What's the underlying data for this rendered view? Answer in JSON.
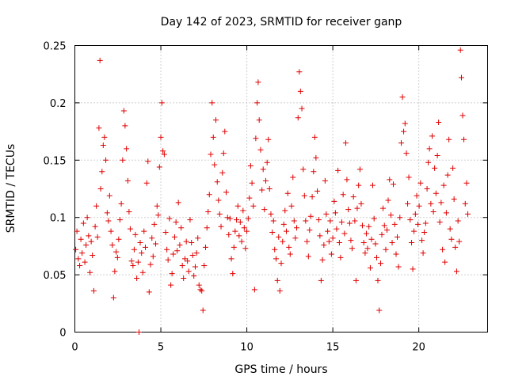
{
  "chart_data": {
    "type": "scatter",
    "title": "Day 142 of 2023, SRMTID for receiver ganp",
    "xlabel": "GPS time / hours",
    "ylabel": "SRMTID / TECUs",
    "xlim": [
      0,
      24
    ],
    "ylim": [
      0,
      0.25
    ],
    "xticks": [
      0,
      5,
      10,
      15,
      20
    ],
    "xtick_labels": [
      "0",
      "5",
      "10",
      "15",
      "20"
    ],
    "yticks": [
      0,
      0.05,
      0.1,
      0.15,
      0.2,
      0.25
    ],
    "ytick_labels": [
      "0",
      "0.05",
      "0.1",
      "0.15",
      "0.2",
      "0.25"
    ],
    "grid": true,
    "marker": "plus",
    "color": "#e00000",
    "series": [
      {
        "name": "SRMTID",
        "points": [
          [
            0.05,
            0.072
          ],
          [
            0.12,
            0.088
          ],
          [
            0.2,
            0.064
          ],
          [
            0.28,
            0.058
          ],
          [
            0.35,
            0.081
          ],
          [
            0.42,
            0.069
          ],
          [
            0.5,
            0.095
          ],
          [
            0.58,
            0.061
          ],
          [
            0.65,
            0.076
          ],
          [
            0.72,
            0.1
          ],
          [
            0.8,
            0.084
          ],
          [
            0.88,
            0.052
          ],
          [
            0.95,
            0.079
          ],
          [
            1.02,
            0.067
          ],
          [
            1.1,
            0.036
          ],
          [
            1.18,
            0.092
          ],
          [
            1.25,
            0.11
          ],
          [
            1.32,
            0.083
          ],
          [
            1.4,
            0.178
          ],
          [
            1.46,
            0.237
          ],
          [
            1.5,
            0.125
          ],
          [
            1.58,
            0.14
          ],
          [
            1.65,
            0.163
          ],
          [
            1.72,
            0.17
          ],
          [
            1.8,
            0.15
          ],
          [
            1.88,
            0.104
          ],
          [
            1.95,
            0.097
          ],
          [
            2.02,
            0.119
          ],
          [
            2.1,
            0.088
          ],
          [
            2.18,
            0.076
          ],
          [
            2.25,
            0.03
          ],
          [
            2.32,
            0.053
          ],
          [
            2.4,
            0.07
          ],
          [
            2.48,
            0.065
          ],
          [
            2.55,
            0.081
          ],
          [
            2.62,
            0.098
          ],
          [
            2.7,
            0.112
          ],
          [
            2.78,
            0.15
          ],
          [
            2.85,
            0.193
          ],
          [
            2.92,
            0.18
          ],
          [
            3.0,
            0.16
          ],
          [
            3.08,
            0.132
          ],
          [
            3.15,
            0.105
          ],
          [
            3.22,
            0.09
          ],
          [
            3.3,
            0.062
          ],
          [
            3.38,
            0.058
          ],
          [
            3.45,
            0.072
          ],
          [
            3.52,
            0.085
          ],
          [
            3.6,
            0.047
          ],
          [
            3.68,
            0.061
          ],
          [
            3.73,
            0.0
          ],
          [
            3.8,
            0.078
          ],
          [
            3.88,
            0.069
          ],
          [
            3.95,
            0.052
          ],
          [
            4.02,
            0.088
          ],
          [
            4.1,
            0.074
          ],
          [
            4.18,
            0.13
          ],
          [
            4.25,
            0.149
          ],
          [
            4.32,
            0.035
          ],
          [
            4.4,
            0.059
          ],
          [
            4.48,
            0.082
          ],
          [
            4.55,
            0.066
          ],
          [
            4.62,
            0.094
          ],
          [
            4.7,
            0.077
          ],
          [
            4.78,
            0.11
          ],
          [
            4.85,
            0.102
          ],
          [
            4.92,
            0.144
          ],
          [
            5.0,
            0.17
          ],
          [
            5.06,
            0.2
          ],
          [
            5.12,
            0.158
          ],
          [
            5.2,
            0.155
          ],
          [
            5.28,
            0.087
          ],
          [
            5.35,
            0.072
          ],
          [
            5.42,
            0.063
          ],
          [
            5.5,
            0.099
          ],
          [
            5.58,
            0.041
          ],
          [
            5.65,
            0.051
          ],
          [
            5.72,
            0.068
          ],
          [
            5.8,
            0.083
          ],
          [
            5.88,
            0.096
          ],
          [
            5.95,
            0.071
          ],
          [
            6.02,
            0.113
          ],
          [
            6.1,
            0.076
          ],
          [
            6.18,
            0.091
          ],
          [
            6.25,
            0.058
          ],
          [
            6.32,
            0.047
          ],
          [
            6.4,
            0.064
          ],
          [
            6.48,
            0.079
          ],
          [
            6.55,
            0.062
          ],
          [
            6.62,
            0.053
          ],
          [
            6.7,
            0.098
          ],
          [
            6.78,
            0.078
          ],
          [
            6.85,
            0.067
          ],
          [
            6.92,
            0.049
          ],
          [
            7.0,
            0.057
          ],
          [
            7.08,
            0.069
          ],
          [
            7.15,
            0.082
          ],
          [
            7.22,
            0.041
          ],
          [
            7.3,
            0.037
          ],
          [
            7.38,
            0.036
          ],
          [
            7.45,
            0.019
          ],
          [
            7.52,
            0.058
          ],
          [
            7.6,
            0.074
          ],
          [
            7.68,
            0.091
          ],
          [
            7.75,
            0.105
          ],
          [
            7.82,
            0.12
          ],
          [
            7.9,
            0.155
          ],
          [
            7.98,
            0.2
          ],
          [
            8.05,
            0.17
          ],
          [
            8.12,
            0.146
          ],
          [
            8.2,
            0.185
          ],
          [
            8.28,
            0.131
          ],
          [
            8.35,
            0.115
          ],
          [
            8.42,
            0.103
          ],
          [
            8.5,
            0.092
          ],
          [
            8.58,
            0.139
          ],
          [
            8.65,
            0.156
          ],
          [
            8.72,
            0.175
          ],
          [
            8.8,
            0.122
          ],
          [
            8.88,
            0.1
          ],
          [
            8.95,
            0.085
          ],
          [
            9.02,
            0.099
          ],
          [
            9.1,
            0.064
          ],
          [
            9.18,
            0.051
          ],
          [
            9.25,
            0.074
          ],
          [
            9.32,
            0.088
          ],
          [
            9.4,
            0.098
          ],
          [
            9.48,
            0.11
          ],
          [
            9.55,
            0.084
          ],
          [
            9.62,
            0.096
          ],
          [
            9.7,
            0.079
          ],
          [
            9.78,
            0.106
          ],
          [
            9.85,
            0.091
          ],
          [
            9.92,
            0.073
          ],
          [
            10.0,
            0.088
          ],
          [
            10.08,
            0.099
          ],
          [
            10.15,
            0.117
          ],
          [
            10.22,
            0.145
          ],
          [
            10.3,
            0.13
          ],
          [
            10.38,
            0.11
          ],
          [
            10.45,
            0.037
          ],
          [
            10.52,
            0.169
          ],
          [
            10.6,
            0.2
          ],
          [
            10.66,
            0.218
          ],
          [
            10.72,
            0.185
          ],
          [
            10.8,
            0.159
          ],
          [
            10.88,
            0.124
          ],
          [
            10.95,
            0.142
          ],
          [
            11.02,
            0.107
          ],
          [
            11.1,
            0.132
          ],
          [
            11.18,
            0.148
          ],
          [
            11.25,
            0.168
          ],
          [
            11.32,
            0.125
          ],
          [
            11.4,
            0.103
          ],
          [
            11.48,
            0.087
          ],
          [
            11.55,
            0.097
          ],
          [
            11.62,
            0.072
          ],
          [
            11.7,
            0.064
          ],
          [
            11.78,
            0.045
          ],
          [
            11.85,
            0.083
          ],
          [
            11.92,
            0.036
          ],
          [
            12.0,
            0.06
          ],
          [
            12.08,
            0.079
          ],
          [
            12.15,
            0.094
          ],
          [
            12.22,
            0.106
          ],
          [
            12.3,
            0.088
          ],
          [
            12.38,
            0.121
          ],
          [
            12.45,
            0.074
          ],
          [
            12.52,
            0.068
          ],
          [
            12.6,
            0.11
          ],
          [
            12.68,
            0.135
          ],
          [
            12.75,
            0.097
          ],
          [
            12.82,
            0.082
          ],
          [
            12.9,
            0.091
          ],
          [
            12.98,
            0.187
          ],
          [
            13.05,
            0.227
          ],
          [
            13.12,
            0.21
          ],
          [
            13.2,
            0.195
          ],
          [
            13.28,
            0.142
          ],
          [
            13.35,
            0.119
          ],
          [
            13.42,
            0.097
          ],
          [
            13.5,
            0.079
          ],
          [
            13.58,
            0.066
          ],
          [
            13.65,
            0.089
          ],
          [
            13.72,
            0.101
          ],
          [
            13.8,
            0.118
          ],
          [
            13.88,
            0.14
          ],
          [
            13.95,
            0.17
          ],
          [
            14.02,
            0.152
          ],
          [
            14.1,
            0.123
          ],
          [
            14.18,
            0.098
          ],
          [
            14.25,
            0.084
          ],
          [
            14.32,
            0.045
          ],
          [
            14.4,
            0.063
          ],
          [
            14.48,
            0.076
          ],
          [
            14.55,
            0.132
          ],
          [
            14.62,
            0.103
          ],
          [
            14.7,
            0.088
          ],
          [
            14.78,
            0.079
          ],
          [
            14.85,
            0.097
          ],
          [
            14.92,
            0.068
          ],
          [
            15.0,
            0.082
          ],
          [
            15.08,
            0.114
          ],
          [
            15.15,
            0.104
          ],
          [
            15.22,
            0.09
          ],
          [
            15.3,
            0.141
          ],
          [
            15.38,
            0.078
          ],
          [
            15.45,
            0.065
          ],
          [
            15.52,
            0.096
          ],
          [
            15.6,
            0.12
          ],
          [
            15.68,
            0.086
          ],
          [
            15.75,
            0.165
          ],
          [
            15.82,
            0.133
          ],
          [
            15.9,
            0.107
          ],
          [
            15.98,
            0.095
          ],
          [
            16.05,
            0.08
          ],
          [
            16.12,
            0.073
          ],
          [
            16.2,
            0.118
          ],
          [
            16.28,
            0.097
          ],
          [
            16.35,
            0.045
          ],
          [
            16.42,
            0.108
          ],
          [
            16.5,
            0.128
          ],
          [
            16.58,
            0.142
          ],
          [
            16.65,
            0.112
          ],
          [
            16.72,
            0.093
          ],
          [
            16.8,
            0.078
          ],
          [
            16.88,
            0.069
          ],
          [
            16.95,
            0.086
          ],
          [
            17.02,
            0.073
          ],
          [
            17.1,
            0.092
          ],
          [
            17.18,
            0.056
          ],
          [
            17.25,
            0.081
          ],
          [
            17.32,
            0.128
          ],
          [
            17.4,
            0.099
          ],
          [
            17.48,
            0.077
          ],
          [
            17.55,
            0.065
          ],
          [
            17.62,
            0.045
          ],
          [
            17.7,
            0.019
          ],
          [
            17.78,
            0.06
          ],
          [
            17.85,
            0.085
          ],
          [
            17.92,
            0.108
          ],
          [
            18.0,
            0.093
          ],
          [
            18.08,
            0.072
          ],
          [
            18.15,
            0.089
          ],
          [
            18.22,
            0.115
          ],
          [
            18.3,
            0.133
          ],
          [
            18.38,
            0.102
          ],
          [
            18.45,
            0.078
          ],
          [
            18.52,
            0.129
          ],
          [
            18.6,
            0.094
          ],
          [
            18.68,
            0.068
          ],
          [
            18.75,
            0.083
          ],
          [
            18.82,
            0.057
          ],
          [
            18.9,
            0.1
          ],
          [
            18.98,
            0.165
          ],
          [
            19.05,
            0.205
          ],
          [
            19.12,
            0.175
          ],
          [
            19.2,
            0.182
          ],
          [
            19.28,
            0.156
          ],
          [
            19.35,
            0.112
          ],
          [
            19.42,
            0.135
          ],
          [
            19.5,
            0.098
          ],
          [
            19.58,
            0.078
          ],
          [
            19.65,
            0.055
          ],
          [
            19.72,
            0.088
          ],
          [
            19.8,
            0.103
          ],
          [
            19.88,
            0.119
          ],
          [
            19.95,
            0.094
          ],
          [
            20.02,
            0.11
          ],
          [
            20.1,
            0.13
          ],
          [
            20.18,
            0.08
          ],
          [
            20.25,
            0.069
          ],
          [
            20.32,
            0.087
          ],
          [
            20.4,
            0.095
          ],
          [
            20.48,
            0.125
          ],
          [
            20.55,
            0.148
          ],
          [
            20.62,
            0.16
          ],
          [
            20.7,
            0.112
          ],
          [
            20.78,
            0.171
          ],
          [
            20.85,
            0.105
          ],
          [
            20.92,
            0.143
          ],
          [
            21.0,
            0.121
          ],
          [
            21.08,
            0.154
          ],
          [
            21.15,
            0.183
          ],
          [
            21.22,
            0.096
          ],
          [
            21.3,
            0.113
          ],
          [
            21.38,
            0.072
          ],
          [
            21.45,
            0.128
          ],
          [
            21.52,
            0.061
          ],
          [
            21.6,
            0.104
          ],
          [
            21.68,
            0.137
          ],
          [
            21.75,
            0.168
          ],
          [
            21.82,
            0.09
          ],
          [
            21.9,
            0.081
          ],
          [
            21.98,
            0.143
          ],
          [
            22.05,
            0.116
          ],
          [
            22.12,
            0.074
          ],
          [
            22.2,
            0.053
          ],
          [
            22.28,
            0.097
          ],
          [
            22.35,
            0.079
          ],
          [
            22.42,
            0.246
          ],
          [
            22.48,
            0.222
          ],
          [
            22.55,
            0.189
          ],
          [
            22.62,
            0.168
          ],
          [
            22.7,
            0.112
          ],
          [
            22.78,
            0.13
          ],
          [
            22.85,
            0.103
          ]
        ]
      }
    ]
  }
}
